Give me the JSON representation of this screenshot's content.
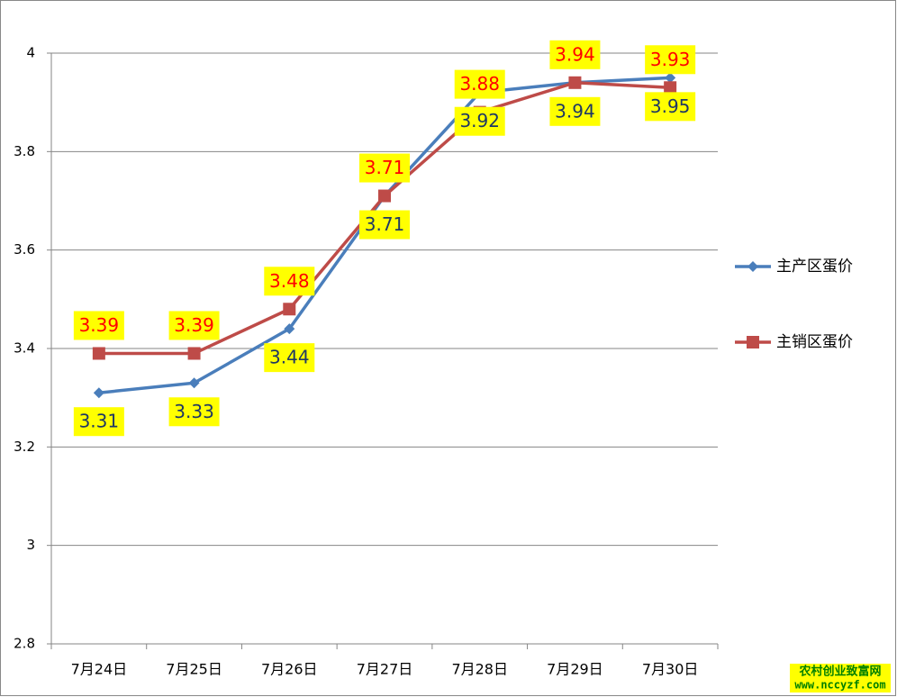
{
  "chart_data": {
    "type": "line",
    "categories": [
      "7月24日",
      "7月25日",
      "7月26日",
      "7月27日",
      "7月28日",
      "7月29日",
      "7月30日"
    ],
    "series": [
      {
        "name": "主产区蛋价",
        "color": "#4a7ebb",
        "marker": "diamond",
        "values": [
          3.31,
          3.33,
          3.44,
          3.71,
          3.92,
          3.94,
          3.95
        ]
      },
      {
        "name": "主销区蛋价",
        "color": "#be4b48",
        "marker": "square",
        "values": [
          3.39,
          3.39,
          3.48,
          3.71,
          3.88,
          3.94,
          3.93
        ]
      }
    ],
    "ylim": [
      2.8,
      4
    ],
    "yticks": [
      2.8,
      3,
      3.2,
      3.4,
      3.6,
      3.8,
      4
    ],
    "grid": true,
    "legend": "right"
  },
  "watermark": {
    "site": "农村创业致富网",
    "url": "www.nccyzf.com"
  }
}
